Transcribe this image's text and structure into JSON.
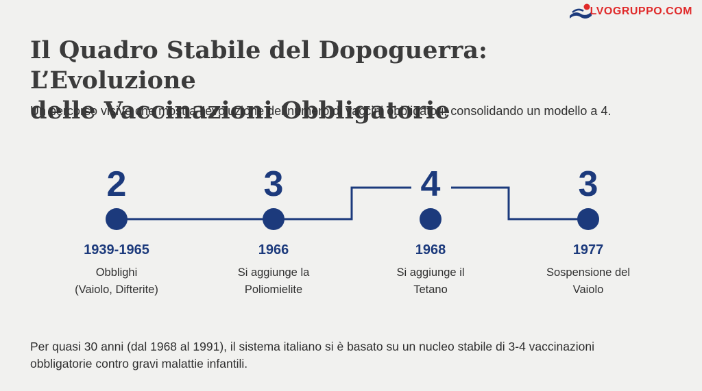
{
  "brand": {
    "logo_text": "LVOGRUPPO.COM",
    "logo_icon": "swimmer-wave-logo-icon",
    "text_color": "#e02a2a"
  },
  "header": {
    "title_line1": "Il Quadro Stabile del Dopoguerra: L’Evoluzione",
    "title_line2": "delle Vaccinazioni Obbligatorie",
    "subtitle": "Un percorso visivo che mostra l’evoluzione del numero di vaccini obbligatori, consolidando un modello a 4."
  },
  "timeline": {
    "accent_color": "#1c3a7c",
    "milestones": [
      {
        "count": "2",
        "year": "1939-1965",
        "desc_line1": "Obblighi",
        "desc_line2": "(Vaiolo, Difterite)"
      },
      {
        "count": "3",
        "year": "1966",
        "desc_line1": "Si aggiunge la",
        "desc_line2": "Poliomielite"
      },
      {
        "count": "4",
        "year": "1968",
        "desc_line1": "Si aggiunge il",
        "desc_line2": "Tetano"
      },
      {
        "count": "3",
        "year": "1977",
        "desc_line1": "Sospensione del",
        "desc_line2": "Vaiolo"
      }
    ]
  },
  "footer": {
    "text_line1": "Per quasi 30 anni (dal 1968 al 1991), il sistema italiano si è basato su un nucleo stabile di 3-4 vaccinazioni",
    "text_line2": "obbligatorie contro gravi malattie infantili."
  }
}
